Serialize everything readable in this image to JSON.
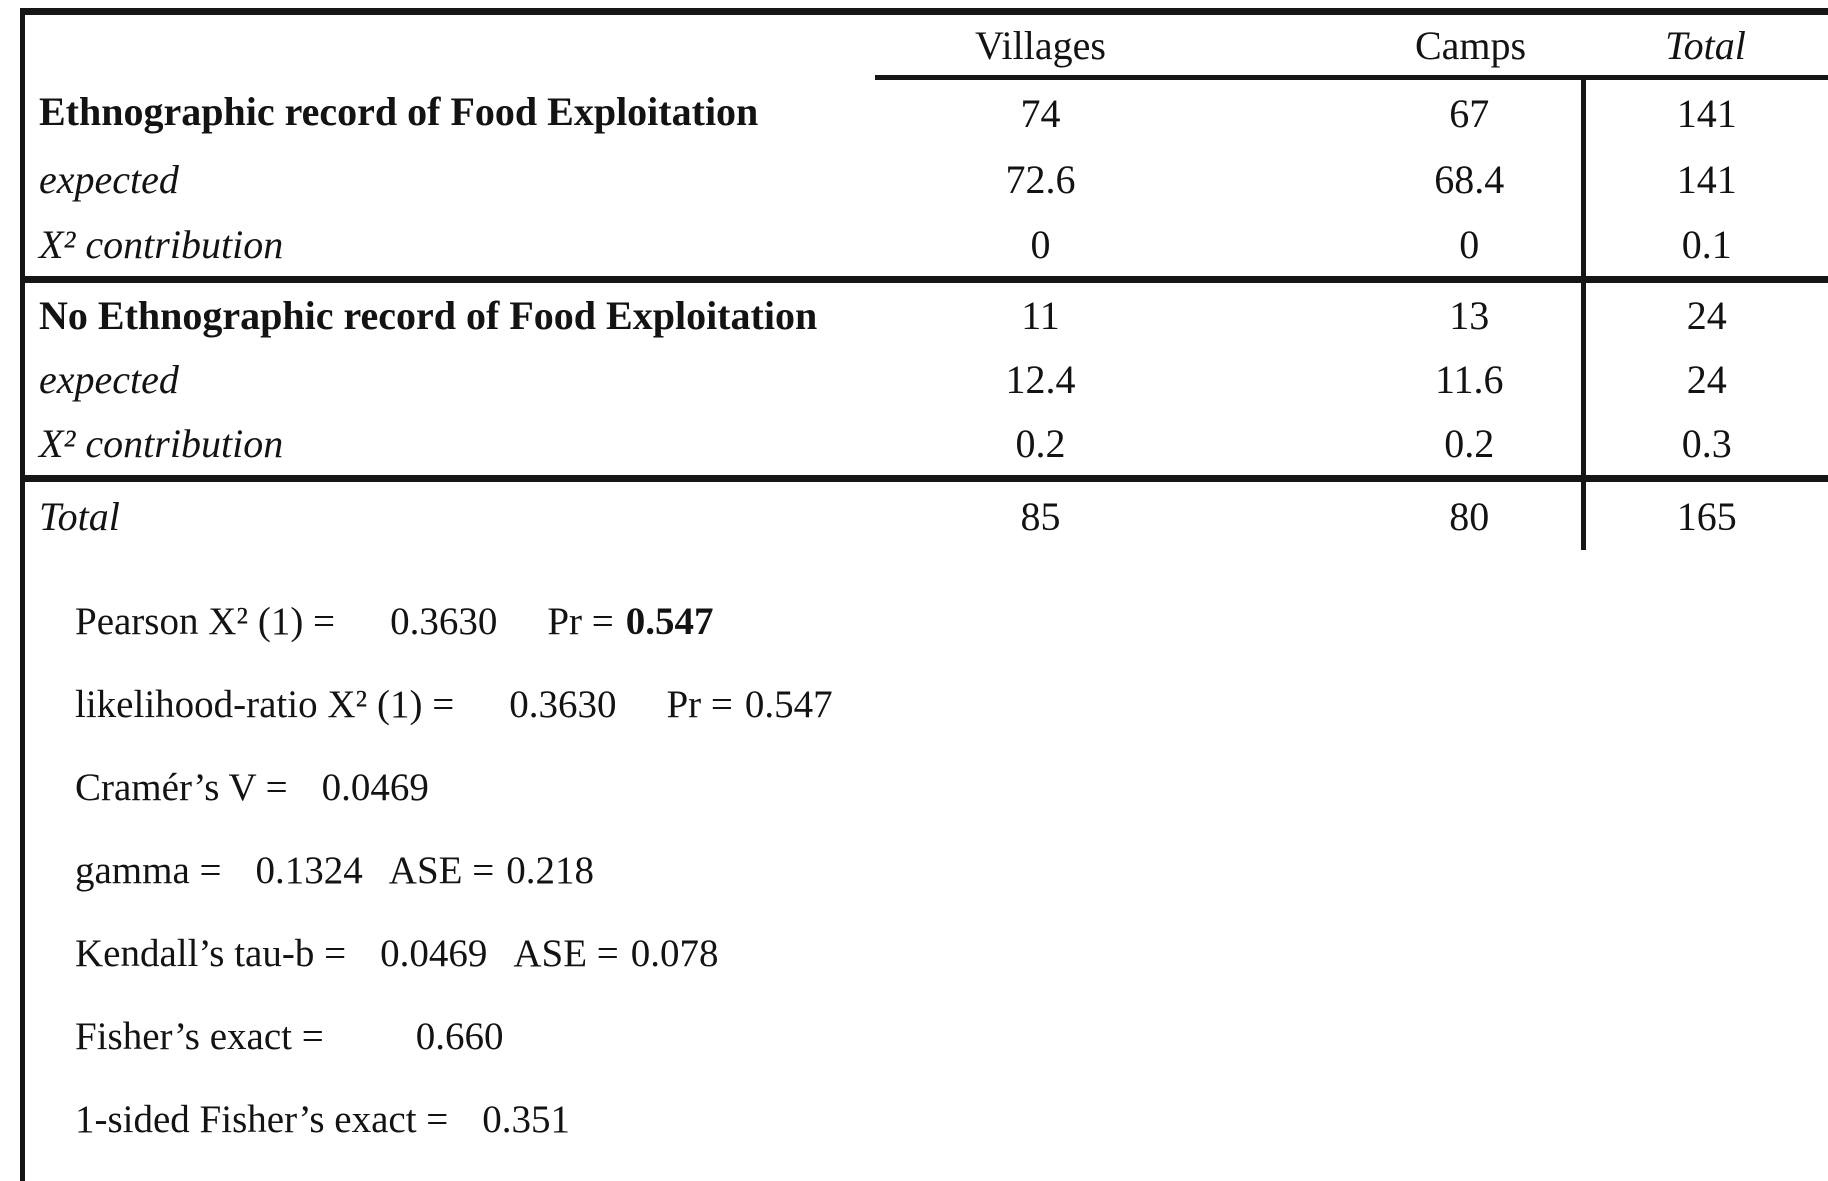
{
  "colors": {
    "ink": "#161616",
    "background": "#ffffff"
  },
  "table": {
    "col_headers": [
      "Villages",
      "Camps",
      "Total"
    ],
    "rows": [
      {
        "label": "Ethnographic record of Food Exploitation",
        "villages": "74",
        "camps": "67",
        "total": "141"
      },
      {
        "label": "expected",
        "villages": "72.6",
        "camps": "68.4",
        "total": "141"
      },
      {
        "label": "Χ² contribution",
        "villages": "0",
        "camps": "0",
        "total": "0.1"
      },
      {
        "label": "No Ethnographic record of Food Exploitation",
        "villages": "11",
        "camps": "13",
        "total": "24"
      },
      {
        "label": "expected",
        "villages": "12.4",
        "camps": "11.6",
        "total": "24"
      },
      {
        "label": "Χ² contribution",
        "villages": "0.2",
        "camps": "0.2",
        "total": "0.3"
      },
      {
        "label": "Total",
        "villages": "85",
        "camps": "80",
        "total": "165"
      }
    ]
  },
  "stats": {
    "pearson": {
      "label": "Pearson Χ² (1) =",
      "value": "0.3630",
      "pr_label": "Pr =",
      "pr_value": "0.547"
    },
    "likelihood": {
      "label": "likelihood-ratio Χ² (1) =",
      "value": "0.3630",
      "pr_label": "Pr =",
      "pr_value": "0.547"
    },
    "cramers_v": {
      "label": "Cramér’s V =",
      "value": "0.0469"
    },
    "gamma": {
      "label": "gamma =",
      "value": "0.1324",
      "ase_label": "ASE =",
      "ase_value": "0.218"
    },
    "kendalls_tau_b": {
      "label": "Kendall’s tau-b =",
      "value": "0.0469",
      "ase_label": "ASE =",
      "ase_value": "0.078"
    },
    "fishers_exact": {
      "label": "Fisher’s exact =",
      "value": "0.660"
    },
    "fishers_1sided": {
      "label": "1-sided Fisher’s exact =",
      "value": "0.351"
    }
  },
  "chart_data": {
    "type": "table",
    "columns": [
      "",
      "Villages",
      "Camps",
      "Total"
    ],
    "rows": [
      [
        "Ethnographic record of Food Exploitation",
        74,
        67,
        141
      ],
      [
        "expected",
        72.6,
        68.4,
        141
      ],
      [
        "Χ² contribution",
        0,
        0,
        0.1
      ],
      [
        "No Ethnographic record of Food Exploitation",
        11,
        13,
        24
      ],
      [
        "expected",
        12.4,
        11.6,
        24
      ],
      [
        "Χ² contribution",
        0.2,
        0.2,
        0.3
      ],
      [
        "Total",
        85,
        80,
        165
      ]
    ],
    "statistics": {
      "pearson_chi2_df": 1,
      "pearson_chi2": 0.363,
      "pearson_pr": 0.547,
      "likelihood_ratio_chi2_df": 1,
      "likelihood_ratio_chi2": 0.363,
      "likelihood_ratio_pr": 0.547,
      "cramers_v": 0.0469,
      "gamma": 0.1324,
      "gamma_ase": 0.218,
      "kendalls_tau_b": 0.0469,
      "kendalls_tau_b_ase": 0.078,
      "fishers_exact": 0.66,
      "one_sided_fishers_exact": 0.351
    }
  }
}
